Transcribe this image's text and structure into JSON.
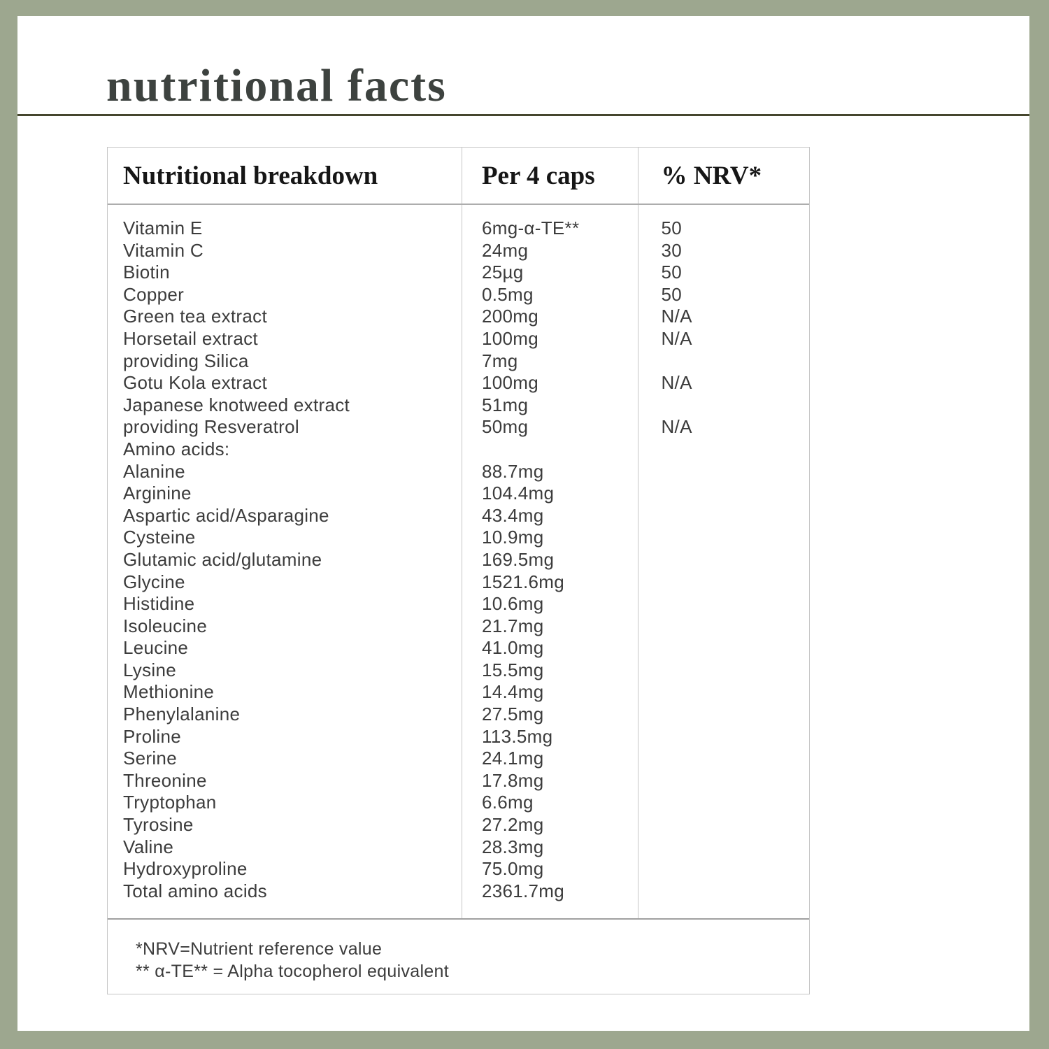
{
  "title": "nutritional facts",
  "colors": {
    "sage": "#9da78f",
    "rule": "#45462e",
    "title": "#3d423f",
    "tableBorder": "#c6c6c6",
    "text": "#3c3c3c"
  },
  "table": {
    "headers": [
      "Nutritional breakdown",
      "Per 4 caps",
      "% NRV*"
    ],
    "rows": [
      {
        "name": "Vitamin E",
        "indent": false,
        "per4": "6mg-α-TE**",
        "nrv": "50"
      },
      {
        "name": "Vitamin C",
        "indent": false,
        "per4": "24mg",
        "nrv": "30"
      },
      {
        "name": "Biotin",
        "indent": false,
        "per4": "25µg",
        "nrv": "50"
      },
      {
        "name": "Copper",
        "indent": false,
        "per4": "0.5mg",
        "nrv": "50"
      },
      {
        "name": "Green tea extract",
        "indent": false,
        "per4": "200mg",
        "nrv": "N/A"
      },
      {
        "name": "Horsetail extract",
        "indent": false,
        "per4": "100mg",
        "nrv": "N/A"
      },
      {
        "name": "providing Silica",
        "indent": true,
        "per4": "7mg",
        "nrv": ""
      },
      {
        "name": "Gotu Kola extract",
        "indent": false,
        "per4": "100mg",
        "nrv": "N/A"
      },
      {
        "name": "Japanese knotweed extract",
        "indent": false,
        "per4": "51mg",
        "nrv": ""
      },
      {
        "name": "providing Resveratrol",
        "indent": true,
        "per4": "50mg",
        "nrv": "N/A"
      },
      {
        "name": "Amino acids:",
        "indent": false,
        "per4": "",
        "nrv": ""
      },
      {
        "name": "Alanine",
        "indent": false,
        "per4": "88.7mg",
        "nrv": ""
      },
      {
        "name": "Arginine",
        "indent": false,
        "per4": "104.4mg",
        "nrv": ""
      },
      {
        "name": "Aspartic acid/Asparagine",
        "indent": false,
        "per4": "43.4mg",
        "nrv": ""
      },
      {
        "name": "Cysteine",
        "indent": false,
        "per4": "10.9mg",
        "nrv": ""
      },
      {
        "name": "Glutamic acid/glutamine",
        "indent": false,
        "per4": "169.5mg",
        "nrv": ""
      },
      {
        "name": "Glycine",
        "indent": false,
        "per4": "1521.6mg",
        "nrv": ""
      },
      {
        "name": "Histidine",
        "indent": false,
        "per4": "10.6mg",
        "nrv": ""
      },
      {
        "name": "Isoleucine",
        "indent": false,
        "per4": "21.7mg",
        "nrv": ""
      },
      {
        "name": "Leucine",
        "indent": false,
        "per4": "41.0mg",
        "nrv": ""
      },
      {
        "name": "Lysine",
        "indent": false,
        "per4": "15.5mg",
        "nrv": ""
      },
      {
        "name": "Methionine",
        "indent": false,
        "per4": "14.4mg",
        "nrv": ""
      },
      {
        "name": "Phenylalanine",
        "indent": false,
        "per4": "27.5mg",
        "nrv": ""
      },
      {
        "name": "Proline",
        "indent": false,
        "per4": "113.5mg",
        "nrv": ""
      },
      {
        "name": "Serine",
        "indent": false,
        "per4": "24.1mg",
        "nrv": ""
      },
      {
        "name": "Threonine",
        "indent": false,
        "per4": "17.8mg",
        "nrv": ""
      },
      {
        "name": "Tryptophan",
        "indent": false,
        "per4": "6.6mg",
        "nrv": ""
      },
      {
        "name": "Tyrosine",
        "indent": false,
        "per4": "27.2mg",
        "nrv": ""
      },
      {
        "name": "Valine",
        "indent": false,
        "per4": "28.3mg",
        "nrv": ""
      },
      {
        "name": "Hydroxyproline",
        "indent": false,
        "per4": "75.0mg",
        "nrv": ""
      },
      {
        "name": "Total amino acids",
        "indent": false,
        "per4": "2361.7mg",
        "nrv": ""
      }
    ],
    "footnotes": [
      "*NRV=Nutrient reference value",
      "** α-TE** = Alpha tocopherol equivalent"
    ]
  }
}
